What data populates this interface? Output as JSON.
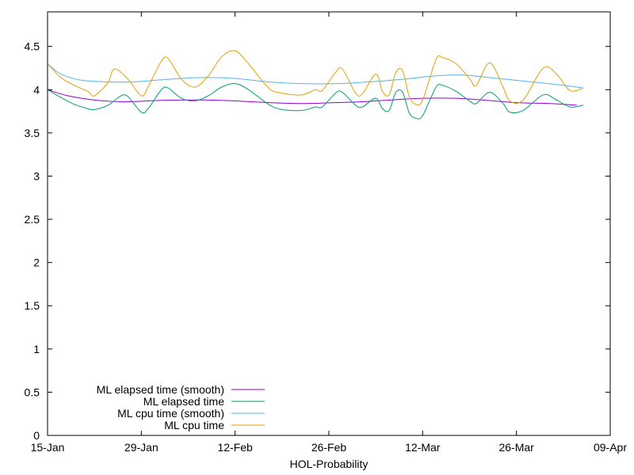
{
  "chart_data": {
    "type": "line",
    "title": "",
    "xlabel": "HOL-Probability",
    "ylabel": "",
    "x_axis": {
      "min": "2023-01-15",
      "max": "2023-04-09",
      "ticks": [
        {
          "date": "2023-01-15",
          "label": "15-Jan"
        },
        {
          "date": "2023-01-29",
          "label": "29-Jan"
        },
        {
          "date": "2023-02-12",
          "label": "12-Feb"
        },
        {
          "date": "2023-02-26",
          "label": "26-Feb"
        },
        {
          "date": "2023-03-12",
          "label": "12-Mar"
        },
        {
          "date": "2023-03-26",
          "label": "26-Mar"
        },
        {
          "date": "2023-04-09",
          "label": "09-Apr"
        }
      ]
    },
    "y_axis": {
      "min": 0,
      "max": 4.9,
      "ticks": [
        {
          "value": 0,
          "label": "0"
        },
        {
          "value": 0.5,
          "label": "0.5"
        },
        {
          "value": 1,
          "label": "1"
        },
        {
          "value": 1.5,
          "label": "1.5"
        },
        {
          "value": 2,
          "label": "2"
        },
        {
          "value": 2.5,
          "label": "2.5"
        },
        {
          "value": 3,
          "label": "3"
        },
        {
          "value": 3.5,
          "label": "3.5"
        },
        {
          "value": 4,
          "label": "4"
        },
        {
          "value": 4.5,
          "label": "4.5"
        }
      ]
    },
    "grid": false,
    "legend_position": "bottom-left",
    "series": [
      {
        "name": "ML elapsed time (smooth)",
        "color": "#9400d3",
        "points": [
          [
            "2023-01-15",
            4.0
          ],
          [
            "2023-01-18",
            3.93
          ],
          [
            "2023-01-22",
            3.88
          ],
          [
            "2023-01-26",
            3.86
          ],
          [
            "2023-01-30",
            3.87
          ],
          [
            "2023-02-03",
            3.88
          ],
          [
            "2023-02-08",
            3.88
          ],
          [
            "2023-02-12",
            3.87
          ],
          [
            "2023-02-17",
            3.85
          ],
          [
            "2023-02-22",
            3.84
          ],
          [
            "2023-02-27",
            3.85
          ],
          [
            "2023-03-03",
            3.86
          ],
          [
            "2023-03-07",
            3.88
          ],
          [
            "2023-03-12",
            3.9
          ],
          [
            "2023-03-17",
            3.9
          ],
          [
            "2023-03-21",
            3.88
          ],
          [
            "2023-03-26",
            3.85
          ],
          [
            "2023-03-31",
            3.84
          ],
          [
            "2023-04-04",
            3.82
          ]
        ]
      },
      {
        "name": "ML elapsed time",
        "color": "#009e73",
        "points": [
          [
            "2023-01-15",
            4.0
          ],
          [
            "2023-01-17",
            3.91
          ],
          [
            "2023-01-19",
            3.83
          ],
          [
            "2023-01-21",
            3.78
          ],
          [
            "2023-01-22",
            3.77
          ],
          [
            "2023-01-24",
            3.82
          ],
          [
            "2023-01-26",
            3.93
          ],
          [
            "2023-01-27",
            3.92
          ],
          [
            "2023-01-29",
            3.74
          ],
          [
            "2023-01-30",
            3.78
          ],
          [
            "2023-02-01",
            4.0
          ],
          [
            "2023-02-02",
            4.02
          ],
          [
            "2023-02-04",
            3.9
          ],
          [
            "2023-02-06",
            3.87
          ],
          [
            "2023-02-08",
            3.93
          ],
          [
            "2023-02-10",
            4.03
          ],
          [
            "2023-02-12",
            4.07
          ],
          [
            "2023-02-14",
            4.0
          ],
          [
            "2023-02-17",
            3.83
          ],
          [
            "2023-02-19",
            3.77
          ],
          [
            "2023-02-22",
            3.76
          ],
          [
            "2023-02-24",
            3.8
          ],
          [
            "2023-02-25",
            3.8
          ],
          [
            "2023-02-27",
            3.96
          ],
          [
            "2023-02-28",
            3.97
          ],
          [
            "2023-03-02",
            3.82
          ],
          [
            "2023-03-03",
            3.8
          ],
          [
            "2023-03-05",
            3.9
          ],
          [
            "2023-03-06",
            3.78
          ],
          [
            "2023-03-07",
            3.76
          ],
          [
            "2023-03-08",
            3.97
          ],
          [
            "2023-03-09",
            3.97
          ],
          [
            "2023-03-10",
            3.73
          ],
          [
            "2023-03-11",
            3.67
          ],
          [
            "2023-03-12",
            3.7
          ],
          [
            "2023-03-14",
            4.03
          ],
          [
            "2023-03-15",
            4.05
          ],
          [
            "2023-03-17",
            3.98
          ],
          [
            "2023-03-19",
            3.87
          ],
          [
            "2023-03-20",
            3.84
          ],
          [
            "2023-03-22",
            3.97
          ],
          [
            "2023-03-24",
            3.84
          ],
          [
            "2023-03-25",
            3.74
          ],
          [
            "2023-03-27",
            3.76
          ],
          [
            "2023-03-30",
            3.94
          ],
          [
            "2023-04-01",
            3.88
          ],
          [
            "2023-04-03",
            3.8
          ],
          [
            "2023-04-05",
            3.82
          ]
        ]
      },
      {
        "name": "ML cpu time (smooth)",
        "color": "#56b4e9",
        "points": [
          [
            "2023-01-15",
            4.3
          ],
          [
            "2023-01-17",
            4.18
          ],
          [
            "2023-01-20",
            4.11
          ],
          [
            "2023-01-24",
            4.09
          ],
          [
            "2023-01-28",
            4.09
          ],
          [
            "2023-02-02",
            4.12
          ],
          [
            "2023-02-07",
            4.14
          ],
          [
            "2023-02-12",
            4.13
          ],
          [
            "2023-02-17",
            4.09
          ],
          [
            "2023-02-22",
            4.07
          ],
          [
            "2023-02-27",
            4.07
          ],
          [
            "2023-03-04",
            4.09
          ],
          [
            "2023-03-09",
            4.12
          ],
          [
            "2023-03-14",
            4.16
          ],
          [
            "2023-03-18",
            4.17
          ],
          [
            "2023-03-22",
            4.14
          ],
          [
            "2023-03-27",
            4.1
          ],
          [
            "2023-04-01",
            4.06
          ],
          [
            "2023-04-05",
            4.02
          ]
        ]
      },
      {
        "name": "ML cpu time",
        "color": "#e69f00",
        "points": [
          [
            "2023-01-15",
            4.3
          ],
          [
            "2023-01-17",
            4.14
          ],
          [
            "2023-01-19",
            4.05
          ],
          [
            "2023-01-21",
            3.98
          ],
          [
            "2023-01-22",
            3.93
          ],
          [
            "2023-01-24",
            4.08
          ],
          [
            "2023-01-25",
            4.24
          ],
          [
            "2023-01-27",
            4.12
          ],
          [
            "2023-01-29",
            3.93
          ],
          [
            "2023-01-30",
            4.03
          ],
          [
            "2023-02-01",
            4.33
          ],
          [
            "2023-02-02",
            4.36
          ],
          [
            "2023-02-04",
            4.12
          ],
          [
            "2023-02-06",
            4.03
          ],
          [
            "2023-02-08",
            4.16
          ],
          [
            "2023-02-10",
            4.38
          ],
          [
            "2023-02-12",
            4.45
          ],
          [
            "2023-02-14",
            4.3
          ],
          [
            "2023-02-17",
            4.02
          ],
          [
            "2023-02-19",
            3.96
          ],
          [
            "2023-02-22",
            3.94
          ],
          [
            "2023-02-24",
            4.0
          ],
          [
            "2023-02-25",
            3.99
          ],
          [
            "2023-02-27",
            4.2
          ],
          [
            "2023-02-28",
            4.24
          ],
          [
            "2023-03-02",
            3.96
          ],
          [
            "2023-03-03",
            3.95
          ],
          [
            "2023-03-05",
            4.18
          ],
          [
            "2023-03-06",
            3.98
          ],
          [
            "2023-03-07",
            3.94
          ],
          [
            "2023-03-08",
            4.2
          ],
          [
            "2023-03-09",
            4.22
          ],
          [
            "2023-03-10",
            3.92
          ],
          [
            "2023-03-11",
            3.83
          ],
          [
            "2023-03-12",
            3.88
          ],
          [
            "2023-03-14",
            4.35
          ],
          [
            "2023-03-15",
            4.37
          ],
          [
            "2023-03-17",
            4.3
          ],
          [
            "2023-03-19",
            4.13
          ],
          [
            "2023-03-20",
            4.05
          ],
          [
            "2023-03-22",
            4.31
          ],
          [
            "2023-03-24",
            4.03
          ],
          [
            "2023-03-25",
            3.87
          ],
          [
            "2023-03-27",
            3.88
          ],
          [
            "2023-03-30",
            4.25
          ],
          [
            "2023-04-01",
            4.18
          ],
          [
            "2023-04-03",
            3.99
          ],
          [
            "2023-04-05",
            4.02
          ]
        ]
      }
    ]
  }
}
